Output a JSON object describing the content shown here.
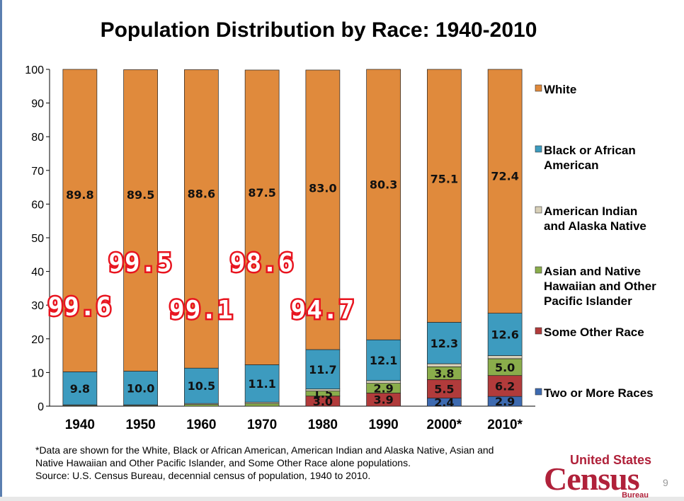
{
  "chart_data": {
    "type": "bar",
    "stacked": true,
    "title": "Population Distribution by Race: 1940-2010",
    "categories": [
      "1940",
      "1950",
      "1960",
      "1970",
      "1980",
      "1990",
      "2000*",
      "2010*"
    ],
    "ylim": [
      0,
      100
    ],
    "yticks": [
      0,
      10,
      20,
      30,
      40,
      50,
      60,
      70,
      80,
      90,
      100
    ],
    "legend_position": "right",
    "series": [
      {
        "name": "Two or More Races",
        "color": "#3d6ab0",
        "values": [
          0,
          0,
          0,
          0,
          0,
          0,
          2.4,
          2.9
        ],
        "labels": [
          "",
          "",
          "",
          "",
          "",
          "",
          "2.4",
          "2.9"
        ]
      },
      {
        "name": "Some Other Race",
        "color": "#b13b3b",
        "values": [
          0,
          0,
          0,
          0,
          3.0,
          3.9,
          5.5,
          6.2
        ],
        "labels": [
          "",
          "",
          "",
          "",
          "3.0",
          "3.9",
          "5.5",
          "6.2"
        ]
      },
      {
        "name": "Asian and Native Hawaiian and Other Pacific Islander",
        "color": "#8aad4b",
        "values": [
          0.2,
          0.2,
          0.5,
          0.8,
          1.5,
          2.9,
          3.8,
          5.0
        ],
        "labels": [
          "",
          "",
          "",
          "",
          "1.5",
          "2.9",
          "3.8",
          "5.0"
        ]
      },
      {
        "name": "American Indian and Alaska Native",
        "color": "#d8d0b8",
        "values": [
          0.2,
          0.2,
          0.3,
          0.4,
          0.6,
          0.8,
          0.9,
          0.9
        ],
        "labels": [
          "",
          "",
          "",
          "",
          "",
          "",
          "",
          ""
        ]
      },
      {
        "name": "Black or African American",
        "color": "#3d9bbf",
        "values": [
          9.8,
          10.0,
          10.5,
          11.1,
          11.7,
          12.1,
          12.3,
          12.6
        ],
        "labels": [
          "9.8",
          "10.0",
          "10.5",
          "11.1",
          "11.7",
          "12.1",
          "12.3",
          "12.6"
        ]
      },
      {
        "name": "White",
        "color": "#e08a3c",
        "values": [
          89.8,
          89.5,
          88.6,
          87.5,
          83.0,
          80.3,
          75.1,
          72.4
        ],
        "labels": [
          "89.8",
          "89.5",
          "88.6",
          "87.5",
          "83.0",
          "80.3",
          "75.1",
          "72.4"
        ]
      }
    ],
    "legend": [
      {
        "label": "White",
        "color": "#e08a3c"
      },
      {
        "label": "Black or African American",
        "color": "#3d9bbf"
      },
      {
        "label": "American Indian and Alaska Native",
        "color": "#d8d0b8"
      },
      {
        "label": "Asian and Native Hawaiian and Other Pacific Islander",
        "color": "#8aad4b"
      },
      {
        "label": "Some Other Race",
        "color": "#b13b3b"
      },
      {
        "label": "Two or More Races",
        "color": "#3d6ab0"
      }
    ],
    "annotations": [
      {
        "category": "1940",
        "text": "99.6",
        "y_value": 27
      },
      {
        "category": "1950",
        "text": "99.5",
        "y_value": 40
      },
      {
        "category": "1960",
        "text": "99.1",
        "y_value": 26
      },
      {
        "category": "1970",
        "text": "98.6",
        "y_value": 40
      },
      {
        "category": "1980",
        "text": "94.7",
        "y_value": 26
      }
    ]
  },
  "footnote": {
    "line1": "*Data are shown for the White, Black or African American, American Indian and Alaska Native, Asian and",
    "line2": "Native Hawaiian and Other Pacific Islander, and Some Other Race alone populations.",
    "line3": "Source: U.S. Census Bureau, decennial census of population, 1940 to 2010."
  },
  "logo": {
    "top": "United States",
    "main": "Census",
    "sub": "Bureau"
  },
  "page_number": "9"
}
